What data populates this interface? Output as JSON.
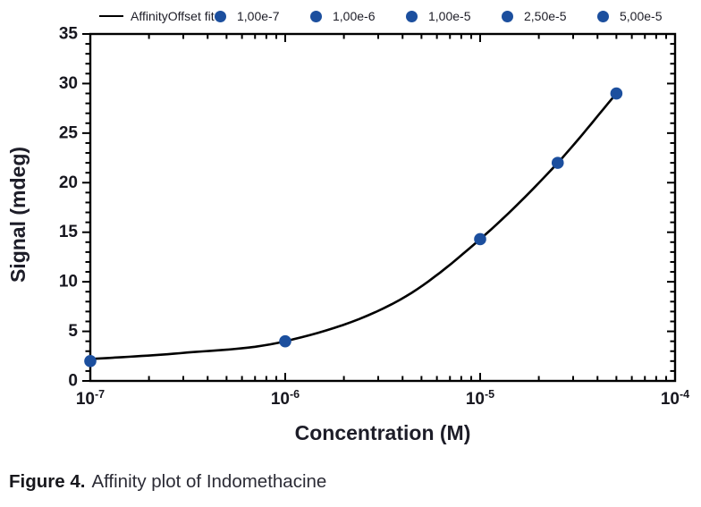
{
  "legend": {
    "fit": {
      "label": "AffinityOffset fit",
      "line_color": "#000000"
    },
    "items": [
      {
        "label": "1,00e-7"
      },
      {
        "label": "1,00e-6"
      },
      {
        "label": "1,00e-5"
      },
      {
        "label": "2,50e-5"
      },
      {
        "label": "5,00e-5"
      }
    ],
    "marker_color": "#1c4f9e"
  },
  "chart_data": {
    "type": "scatter",
    "title": "",
    "xlabel": "Concentration (M)",
    "ylabel": "Signal (mdeg)",
    "x_scale": "log10",
    "xlim_log10": [
      -7,
      -4
    ],
    "ylim": [
      0,
      35
    ],
    "y_major_step": 5,
    "y_minor_step": 1,
    "grid": "off",
    "legend_position": "top",
    "x_major_ticks": [
      {
        "base": "10",
        "exp": "-7"
      },
      {
        "base": "10",
        "exp": "-6"
      },
      {
        "base": "10",
        "exp": "-5"
      },
      {
        "base": "10",
        "exp": "-4"
      }
    ],
    "y_major_labels": [
      "0",
      "5",
      "10",
      "15",
      "20",
      "25",
      "30",
      "35"
    ],
    "points": {
      "concentrations_M": [
        1e-07,
        1e-06,
        1e-05,
        2.5e-05,
        5e-05
      ],
      "x_log10": [
        -7,
        -6,
        -5,
        -4.602,
        -4.301
      ],
      "signal_mdeg": [
        2.0,
        4.0,
        14.3,
        22.0,
        29.0
      ],
      "color": "#1c4f9e",
      "radius": 6.8
    },
    "fit_curve": {
      "name": "AffinityOffset fit",
      "color": "#000000",
      "width": 2.6,
      "log10_anchors": [
        [
          -7,
          2.2
        ],
        [
          -6.54,
          2.8
        ],
        [
          -6,
          4.0
        ],
        [
          -5.41,
          8.2
        ],
        [
          -5,
          14.3
        ],
        [
          -4.602,
          22.0
        ],
        [
          -4.301,
          29.0
        ]
      ]
    }
  },
  "caption": {
    "label": "Figure 4.",
    "text": "Affinity plot of Indomethacine"
  }
}
